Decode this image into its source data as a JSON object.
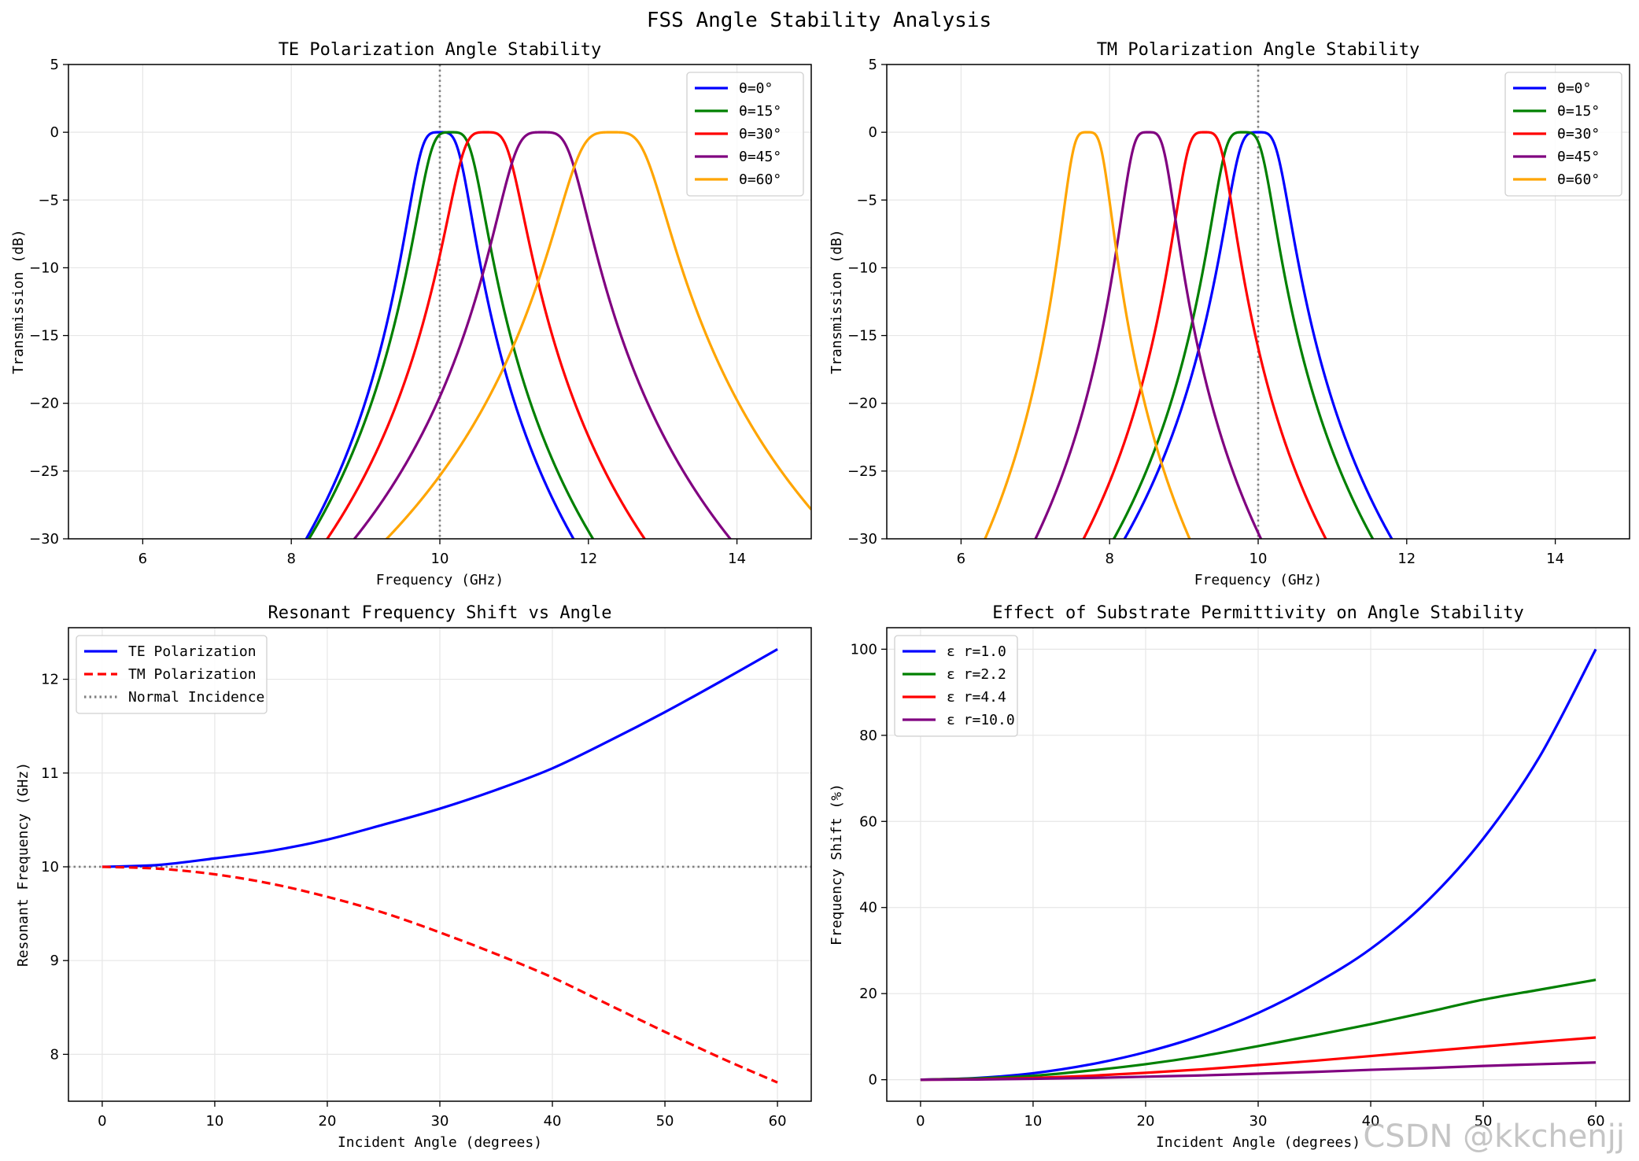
{
  "suptitle": "FSS Angle Stability Analysis",
  "watermark": "CSDN @kkchenjj",
  "chart_data": [
    {
      "type": "line",
      "title": "TE Polarization Angle Stability",
      "xlabel": "Frequency (GHz)",
      "ylabel": "Transmission (dB)",
      "xlim": [
        5,
        15
      ],
      "ylim": [
        -30,
        5
      ],
      "xticks": [
        6,
        8,
        10,
        12,
        14
      ],
      "yticks": [
        5,
        0,
        -5,
        -10,
        -15,
        -20,
        -25,
        -30
      ],
      "grid": true,
      "legend_position": "top-right",
      "reference_line": {
        "orientation": "vertical",
        "value": 10,
        "style": "dotted",
        "color": "#808080"
      },
      "model": "lorentzian",
      "series": [
        {
          "name": "θ=0°",
          "color": "#0000ff",
          "resonance": 10.0,
          "bandwidth": 0.32
        },
        {
          "name": "θ=15°",
          "color": "#008000",
          "resonance": 10.15,
          "bandwidth": 0.34
        },
        {
          "name": "θ=30°",
          "color": "#ff0000",
          "resonance": 10.62,
          "bandwidth": 0.38
        },
        {
          "name": "θ=45°",
          "color": "#800080",
          "resonance": 11.38,
          "bandwidth": 0.45
        },
        {
          "name": "θ=60°",
          "color": "#ffa500",
          "resonance": 12.32,
          "bandwidth": 0.54
        }
      ]
    },
    {
      "type": "line",
      "title": "TM Polarization Angle Stability",
      "xlabel": "Frequency (GHz)",
      "ylabel": "Transmission (dB)",
      "xlim": [
        5,
        15
      ],
      "ylim": [
        -30,
        5
      ],
      "xticks": [
        6,
        8,
        10,
        12,
        14
      ],
      "yticks": [
        5,
        0,
        -5,
        -10,
        -15,
        -20,
        -25,
        -30
      ],
      "grid": true,
      "legend_position": "top-right",
      "reference_line": {
        "orientation": "vertical",
        "value": 10,
        "style": "dotted",
        "color": "#808080"
      },
      "model": "lorentzian",
      "series": [
        {
          "name": "θ=0°",
          "color": "#0000ff",
          "resonance": 10.0,
          "bandwidth": 0.32
        },
        {
          "name": "θ=15°",
          "color": "#008000",
          "resonance": 9.8,
          "bandwidth": 0.31
        },
        {
          "name": "θ=30°",
          "color": "#ff0000",
          "resonance": 9.28,
          "bandwidth": 0.29
        },
        {
          "name": "θ=45°",
          "color": "#800080",
          "resonance": 8.52,
          "bandwidth": 0.27
        },
        {
          "name": "θ=60°",
          "color": "#ffa500",
          "resonance": 7.7,
          "bandwidth": 0.245
        }
      ]
    },
    {
      "type": "line",
      "title": "Resonant Frequency Shift vs Angle",
      "xlabel": "Incident Angle (degrees)",
      "ylabel": "Resonant Frequency (GHz)",
      "xlim": [
        -3,
        63
      ],
      "ylim": [
        7.5,
        12.55
      ],
      "xticks": [
        0,
        10,
        20,
        30,
        40,
        50,
        60
      ],
      "yticks": [
        8,
        9,
        10,
        11,
        12
      ],
      "grid": true,
      "legend_position": "top-left",
      "reference_line": {
        "orientation": "horizontal",
        "value": 10,
        "style": "dotted",
        "color": "#808080",
        "label": "Normal Incidence"
      },
      "x": [
        0,
        5,
        10,
        15,
        20,
        25,
        30,
        35,
        40,
        45,
        50,
        55,
        60
      ],
      "series": [
        {
          "name": "TE Polarization",
          "color": "#0000ff",
          "style": "solid",
          "values": [
            10.0,
            10.02,
            10.09,
            10.17,
            10.29,
            10.45,
            10.62,
            10.82,
            11.05,
            11.34,
            11.65,
            11.98,
            12.32
          ]
        },
        {
          "name": "TM Polarization",
          "color": "#ff0000",
          "style": "dashed",
          "values": [
            10.0,
            9.98,
            9.92,
            9.82,
            9.68,
            9.51,
            9.3,
            9.07,
            8.82,
            8.53,
            8.24,
            7.96,
            7.7
          ]
        }
      ]
    },
    {
      "type": "line",
      "title": "Effect of Substrate Permittivity on Angle Stability",
      "xlabel": "Incident Angle (degrees)",
      "ylabel": "Frequency Shift (%)",
      "xlim": [
        -3,
        63
      ],
      "ylim": [
        -5,
        105
      ],
      "xticks": [
        0,
        10,
        20,
        30,
        40,
        50,
        60
      ],
      "yticks": [
        0,
        20,
        40,
        60,
        80,
        100
      ],
      "grid": true,
      "legend_position": "top-left",
      "x": [
        0,
        5,
        10,
        15,
        20,
        25,
        30,
        35,
        40,
        45,
        50,
        55,
        60
      ],
      "series": [
        {
          "name": "ε r=1.0",
          "color": "#0000ff",
          "values": [
            0,
            0.4,
            1.5,
            3.5,
            6.4,
            10.3,
            15.5,
            22.2,
            30.4,
            41.4,
            56.0,
            75.0,
            100.0
          ]
        },
        {
          "name": "ε r=2.2",
          "color": "#008000",
          "values": [
            0,
            0.3,
            0.9,
            2.1,
            3.6,
            5.5,
            7.8,
            10.3,
            12.9,
            15.7,
            18.6,
            20.9,
            23.2
          ]
        },
        {
          "name": "ε r=4.4",
          "color": "#ff0000",
          "values": [
            0,
            0.1,
            0.4,
            0.9,
            1.6,
            2.4,
            3.4,
            4.4,
            5.5,
            6.6,
            7.7,
            8.8,
            9.8
          ]
        },
        {
          "name": "ε r=10.0",
          "color": "#800080",
          "values": [
            0,
            0.05,
            0.2,
            0.4,
            0.7,
            1.0,
            1.4,
            1.8,
            2.3,
            2.7,
            3.2,
            3.6,
            4.0
          ]
        }
      ]
    }
  ]
}
